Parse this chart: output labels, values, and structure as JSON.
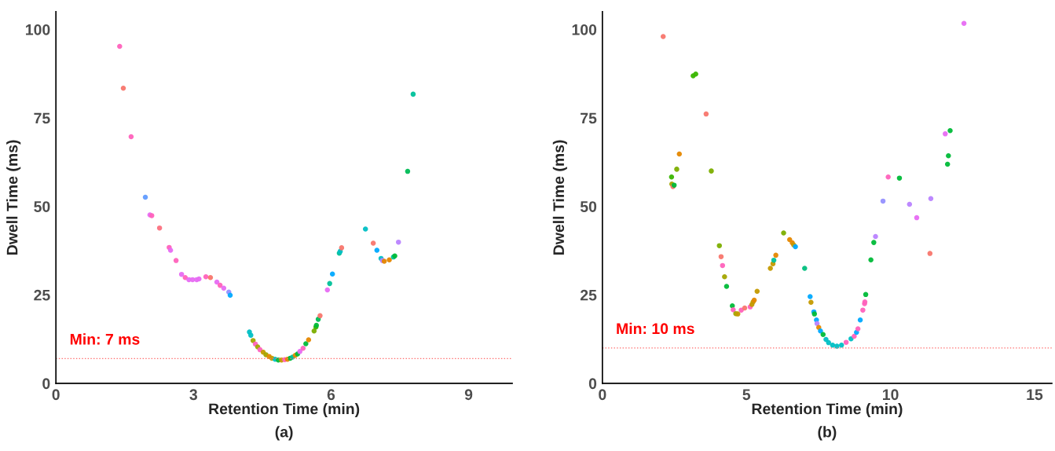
{
  "chart_data": [
    {
      "type": "scatter",
      "xlabel": "Retention Time (min)",
      "ylabel": "Dwell Time (ms)",
      "xlim": [
        0,
        9.95
      ],
      "xticks": [
        0,
        3,
        6,
        9
      ],
      "ylim": [
        0,
        105
      ],
      "yticks": [
        0,
        25,
        50,
        75,
        100
      ],
      "grid": false,
      "marker": "circle",
      "annotations": [
        "(a)"
      ],
      "ref_lines": [
        {
          "axis": "y",
          "value": 7,
          "label": "Min: 7 ms",
          "color": "#ff6b6b",
          "line_style": "dotted"
        }
      ],
      "series": [
        {
          "x": [
            1.39,
            1.47,
            1.64,
            1.95,
            2.05,
            2.09,
            2.26,
            2.47,
            2.5,
            2.62,
            2.74,
            2.82,
            2.9,
            2.98,
            3.07,
            3.12,
            3.27,
            3.37,
            3.51,
            3.58,
            3.66,
            3.77,
            3.8,
            4.22,
            4.25,
            4.3,
            4.35,
            4.4,
            4.45,
            4.52,
            4.58,
            4.65,
            4.71,
            4.78,
            4.85,
            4.92,
            4.99,
            5.05,
            5.11,
            5.16,
            5.22,
            5.27,
            5.32,
            5.39,
            5.45,
            5.51,
            5.63,
            5.67,
            5.68,
            5.72,
            5.76,
            5.92,
            5.97,
            6.03,
            6.18,
            6.2,
            6.23,
            6.75,
            6.92,
            7.0,
            7.09,
            7.12,
            7.16,
            7.27,
            7.36,
            7.39,
            7.47,
            7.67,
            7.79
          ],
          "values": [
            95.2,
            83.4,
            69.7,
            52.6,
            47.6,
            47.4,
            43.9,
            38.4,
            37.6,
            34.7,
            30.8,
            29.9,
            29.3,
            29.3,
            29.3,
            29.5,
            30.1,
            29.9,
            28.6,
            27.7,
            26.9,
            25.8,
            24.9,
            14.5,
            13.6,
            12.1,
            11.1,
            10.3,
            9.5,
            8.8,
            8.1,
            7.6,
            7.1,
            6.8,
            6.6,
            6.6,
            6.7,
            6.8,
            7.1,
            7.4,
            7.9,
            8.3,
            9.0,
            9.9,
            11.2,
            12.3,
            14.8,
            15.9,
            16.4,
            18.1,
            19.1,
            26.4,
            28.2,
            30.9,
            36.8,
            37.3,
            38.3,
            43.6,
            39.6,
            37.6,
            35.3,
            34.7,
            34.5,
            34.9,
            35.7,
            36.0,
            39.9,
            59.9,
            81.7
          ],
          "colors": [
            "#ff62bc",
            "#f8766d",
            "#ff62bc",
            "#619cff",
            "#e76bf3",
            "#ff62bc",
            "#fc717f",
            "#ff62bc",
            "#e76bf3",
            "#ff62bc",
            "#e76bf3",
            "#ff62bc",
            "#e76bf3",
            "#e76bf3",
            "#e76bf3",
            "#e76bf3",
            "#ff62bc",
            "#f8766d",
            "#e76bf3",
            "#ff62bc",
            "#e76bf3",
            "#9590ff",
            "#00a9ff",
            "#00bfc4",
            "#00bfc4",
            "#a3a500",
            "#ff62bc",
            "#a3a500",
            "#ff62bc",
            "#c49a00",
            "#a3a500",
            "#e58700",
            "#c49a00",
            "#00bfc4",
            "#00ba38",
            "#c49a00",
            "#ff62bc",
            "#e58700",
            "#00ba38",
            "#00c19a",
            "#e58700",
            "#00ba38",
            "#e76bf3",
            "#ff62bc",
            "#00ba38",
            "#e58700",
            "#7cae00",
            "#39b600",
            "#00ba38",
            "#00bc56",
            "#f8766d",
            "#e76bf3",
            "#00c19a",
            "#00a9ff",
            "#00c19a",
            "#00bfc4",
            "#f8766d",
            "#00bfc4",
            "#f8766d",
            "#00a9ff",
            "#00bfc4",
            "#b983ff",
            "#e58700",
            "#e58700",
            "#00c19a",
            "#00ba38",
            "#b983ff",
            "#00bc56",
            "#00c19a"
          ]
        }
      ]
    },
    {
      "type": "scatter",
      "xlabel": "Retention Time (min)",
      "ylabel": "Dwell Time (ms)",
      "xlim": [
        0,
        15.6
      ],
      "xticks": [
        0,
        5,
        10,
        15
      ],
      "ylim": [
        0,
        105
      ],
      "yticks": [
        0,
        25,
        50,
        75,
        100
      ],
      "grid": false,
      "marker": "circle",
      "annotations": [
        "(b)"
      ],
      "ref_lines": [
        {
          "axis": "y",
          "value": 10,
          "label": "Min: 10 ms",
          "color": "#ff6b6b",
          "line_style": "dotted"
        }
      ],
      "series": [
        {
          "x": [
            2.11,
            2.4,
            2.41,
            2.45,
            2.49,
            2.58,
            2.67,
            3.15,
            3.24,
            3.6,
            3.78,
            4.06,
            4.12,
            4.17,
            4.24,
            4.31,
            4.51,
            4.54,
            4.63,
            4.7,
            4.82,
            4.94,
            5.13,
            5.19,
            5.23,
            5.27,
            5.37,
            5.83,
            5.92,
            5.95,
            6.02,
            6.29,
            6.5,
            6.59,
            6.64,
            6.7,
            7.02,
            7.21,
            7.24,
            7.34,
            7.36,
            7.43,
            7.45,
            7.51,
            7.57,
            7.66,
            7.76,
            7.85,
            7.99,
            8.14,
            8.3,
            8.46,
            8.63,
            8.74,
            8.82,
            8.87,
            8.95,
            9.04,
            9.1,
            9.11,
            9.14,
            9.32,
            9.42,
            9.48,
            9.74,
            9.92,
            10.31,
            10.66,
            10.91,
            11.37,
            11.4,
            11.9,
            11.98,
            12.01,
            12.07,
            12.55
          ],
          "values": [
            98.0,
            58.3,
            56.3,
            55.6,
            56.0,
            60.5,
            64.8,
            86.9,
            87.4,
            76.1,
            60.0,
            38.9,
            35.8,
            33.3,
            30.1,
            27.4,
            21.9,
            20.8,
            19.7,
            19.6,
            20.7,
            21.3,
            21.6,
            22.3,
            23.0,
            23.5,
            26.0,
            32.5,
            33.8,
            34.8,
            36.2,
            42.5,
            40.6,
            39.7,
            39.1,
            38.6,
            32.5,
            24.5,
            22.9,
            20.2,
            19.6,
            17.9,
            16.9,
            15.8,
            14.8,
            13.8,
            12.4,
            11.5,
            10.8,
            10.5,
            10.8,
            11.6,
            12.6,
            13.3,
            14.4,
            15.4,
            17.9,
            20.7,
            22.5,
            23.0,
            25.1,
            34.9,
            39.8,
            41.5,
            51.5,
            58.3,
            58.0,
            50.6,
            46.8,
            36.7,
            52.2,
            70.5,
            61.9,
            64.3,
            71.4,
            101.7
          ],
          "colors": [
            "#f8766d",
            "#39b600",
            "#a3a500",
            "#f8766d",
            "#00ba38",
            "#7cae00",
            "#e58700",
            "#39b600",
            "#39b600",
            "#f8766d",
            "#7cae00",
            "#7cae00",
            "#f8766d",
            "#ff62bc",
            "#a3a500",
            "#00ba38",
            "#00ba38",
            "#ff62bc",
            "#a3a500",
            "#c49a00",
            "#ff62bc",
            "#f8766d",
            "#ff62bc",
            "#c49a00",
            "#c49a00",
            "#e58700",
            "#c49a00",
            "#c49a00",
            "#c49a00",
            "#00c19a",
            "#e58700",
            "#7cae00",
            "#e58700",
            "#e58700",
            "#c49a00",
            "#00a9ff",
            "#00bf7d",
            "#00a9ff",
            "#c49a00",
            "#00a9ff",
            "#00ba38",
            "#00a9ff",
            "#b983ff",
            "#e58700",
            "#00a9ff",
            "#00ba38",
            "#00bfc4",
            "#00bfc4",
            "#00bfc4",
            "#00bfc4",
            "#00bfc4",
            "#ff62bc",
            "#00bfc4",
            "#ff62bc",
            "#00a9ff",
            "#ff62bc",
            "#00a9ff",
            "#ff62bc",
            "#ff62bc",
            "#ff62bc",
            "#00ba38",
            "#00ba38",
            "#00ba38",
            "#b983ff",
            "#9590ff",
            "#ff62bc",
            "#00ba38",
            "#b983ff",
            "#e76bf3",
            "#f8766d",
            "#b983ff",
            "#e76bf3",
            "#00ba38",
            "#00ba38",
            "#00ba38",
            "#e76bf3"
          ]
        }
      ]
    }
  ]
}
